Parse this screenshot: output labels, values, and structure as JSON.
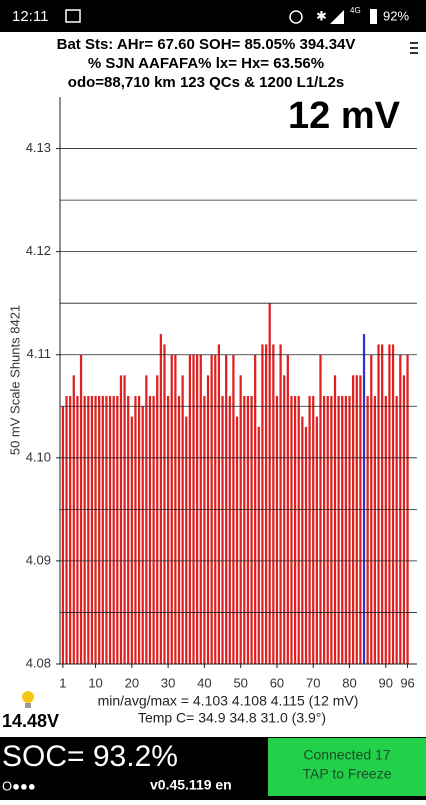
{
  "status_bar": {
    "time": "12:11",
    "network": "4G",
    "battery": "92%"
  },
  "header": {
    "line1": "Bat Sts: AHr= 67.60 SOH= 85.05% 394.34V",
    "line2": "% SJN AAFAFA% lx= Hx= 63.56%",
    "line3": "odo=88,710 km 123 QCs & 1200 L1/L2s"
  },
  "chart_data": {
    "type": "bar",
    "annotation": "12 mV",
    "y_label": "50 mV Scale   Shunts 8421",
    "x": [
      1,
      2,
      3,
      4,
      5,
      6,
      7,
      8,
      9,
      10,
      11,
      12,
      13,
      14,
      15,
      16,
      17,
      18,
      19,
      20,
      21,
      22,
      23,
      24,
      25,
      26,
      27,
      28,
      29,
      30,
      31,
      32,
      33,
      34,
      35,
      36,
      37,
      38,
      39,
      40,
      41,
      42,
      43,
      44,
      45,
      46,
      47,
      48,
      49,
      50,
      51,
      52,
      53,
      54,
      55,
      56,
      57,
      58,
      59,
      60,
      61,
      62,
      63,
      64,
      65,
      66,
      67,
      68,
      69,
      70,
      71,
      72,
      73,
      74,
      75,
      76,
      77,
      78,
      79,
      80,
      81,
      82,
      83,
      84,
      85,
      86,
      87,
      88,
      89,
      90,
      91,
      92,
      93,
      94,
      95,
      96
    ],
    "values": [
      4.105,
      4.106,
      4.106,
      4.108,
      4.106,
      4.11,
      4.106,
      4.106,
      4.106,
      4.106,
      4.106,
      4.106,
      4.106,
      4.106,
      4.106,
      4.106,
      4.108,
      4.108,
      4.106,
      4.104,
      4.106,
      4.106,
      4.105,
      4.108,
      4.106,
      4.106,
      4.108,
      4.112,
      4.111,
      4.106,
      4.11,
      4.11,
      4.106,
      4.108,
      4.104,
      4.11,
      4.11,
      4.11,
      4.11,
      4.106,
      4.108,
      4.11,
      4.11,
      4.111,
      4.106,
      4.11,
      4.106,
      4.11,
      4.104,
      4.108,
      4.106,
      4.106,
      4.106,
      4.11,
      4.103,
      4.111,
      4.111,
      4.115,
      4.111,
      4.106,
      4.111,
      4.108,
      4.11,
      4.106,
      4.106,
      4.106,
      4.104,
      4.103,
      4.106,
      4.106,
      4.104,
      4.11,
      4.106,
      4.106,
      4.106,
      4.108,
      4.106,
      4.106,
      4.106,
      4.106,
      4.108,
      4.108,
      4.108,
      4.112,
      4.106,
      4.11,
      4.106,
      4.111,
      4.111,
      4.106,
      4.111,
      4.111,
      4.106,
      4.11,
      4.108,
      4.11
    ],
    "color": "#e02020",
    "highlight": {
      "index": 83,
      "color": "#3030d0"
    },
    "xlim": [
      0.2,
      97.5
    ],
    "xticks": [
      1,
      10,
      20,
      30,
      40,
      50,
      60,
      70,
      80,
      90,
      96
    ],
    "ylim": [
      4.08,
      4.135
    ],
    "yticks": [
      4.08,
      4.09,
      {
        "value": 4.1,
        "label": "4.10"
      },
      4.11,
      4.12,
      4.13
    ],
    "grid_lines": [
      4.085,
      4.09,
      4.095,
      4.1,
      4.105,
      4.11,
      4.115,
      4.12,
      4.125,
      4.13
    ]
  },
  "footer": {
    "stats": "min/avg/max = 4.103 4.108 4.115 (12 mV)",
    "temp": "Temp C= 34.9  34.8  31.0  (3.9°)",
    "voltage": "14.48V",
    "soc": "SOC= 93.2%",
    "dots": "O●●●",
    "version": "v0.45.119 en",
    "button_line1": "Connected 17",
    "button_line2": "TAP to Freeze"
  }
}
